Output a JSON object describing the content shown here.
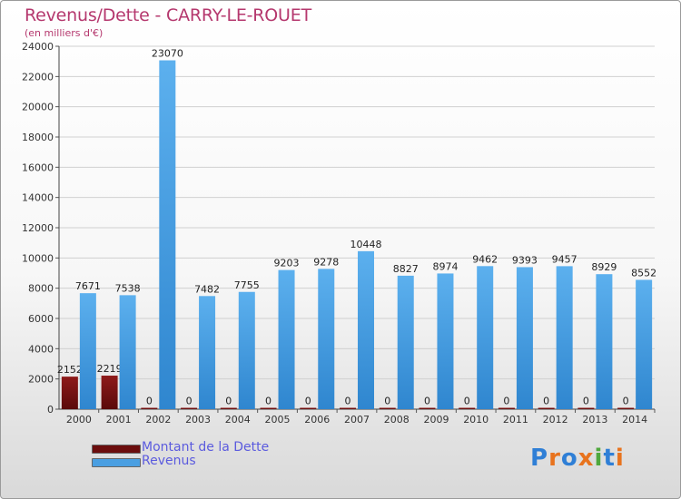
{
  "header": {
    "title": "Revenus/Dette - CARRY-LE-ROUET",
    "subtitle": "(en milliers d'€)"
  },
  "chart_data": {
    "type": "bar",
    "title": "Revenus/Dette - CARRY-LE-ROUET",
    "ylabel": "(en milliers d'€)",
    "categories": [
      "2000",
      "2001",
      "2002",
      "2003",
      "2004",
      "2005",
      "2006",
      "2007",
      "2008",
      "2009",
      "2010",
      "2011",
      "2012",
      "2013",
      "2014"
    ],
    "series": [
      {
        "name": "Montant de la Dette",
        "color": "#7a1010",
        "values": [
          2152,
          2219,
          0,
          0,
          0,
          0,
          0,
          0,
          0,
          0,
          0,
          0,
          0,
          0,
          0
        ],
        "labels": [
          "2152",
          "2219",
          "0",
          "0",
          "0",
          "0",
          "0",
          "0",
          "0",
          "0",
          "0",
          "0",
          "0",
          "0",
          "0"
        ]
      },
      {
        "name": "Revenus",
        "color": "#4a9fe2",
        "values": [
          7671,
          7538,
          23070,
          7482,
          7755,
          9203,
          9278,
          10448,
          8827,
          8974,
          9462,
          9393,
          9457,
          8929,
          8552
        ],
        "labels": [
          "7671",
          "7538",
          "23070",
          "7482",
          "7755",
          "9203",
          "9278",
          "10448",
          "8827",
          "8974",
          "9462",
          "9393",
          "9457",
          "8929",
          "8552"
        ]
      }
    ],
    "ylim": [
      0,
      24000
    ],
    "yticks": [
      "0",
      "2000",
      "4000",
      "6000",
      "8000",
      "10000",
      "12000",
      "14000",
      "16000",
      "18000",
      "20000",
      "22000",
      "24000"
    ],
    "grid": true,
    "legend": "bottom-left"
  },
  "legend": {
    "items": [
      {
        "label": "Montant de la Dette",
        "color": "#6b0d0d"
      },
      {
        "label": "Revenus",
        "color": "#4a9fe2"
      }
    ]
  },
  "logo": {
    "letters": [
      "P",
      "r",
      "o",
      "x",
      "i",
      "t",
      "i"
    ],
    "colors": [
      "#2f7fd6",
      "#e8731d",
      "#2f7fd6",
      "#e8731d",
      "#4fa83d",
      "#2f7fd6",
      "#e8731d"
    ]
  }
}
